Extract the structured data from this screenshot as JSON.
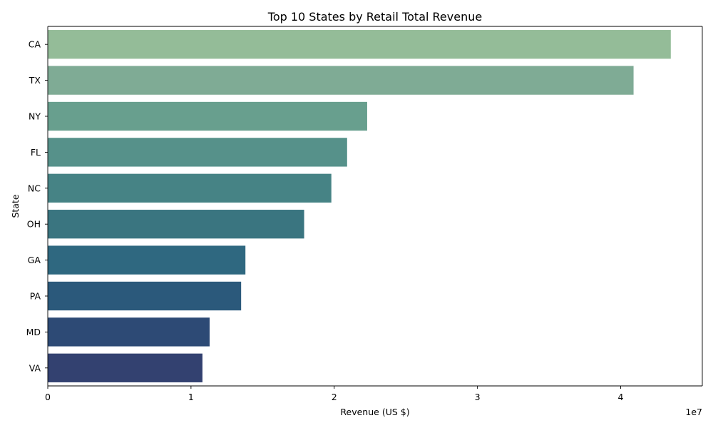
{
  "chart_data": {
    "type": "bar",
    "orientation": "horizontal",
    "title": "Top 10 States by Retail Total Revenue",
    "xlabel": "Revenue (US $)",
    "ylabel": "State",
    "x_offset_label": "1e7",
    "xlim": [
      0,
      45700000
    ],
    "xticks": [
      0,
      10000000,
      20000000,
      30000000,
      40000000
    ],
    "xtick_labels": [
      "0",
      "1",
      "2",
      "3",
      "4"
    ],
    "categories": [
      "CA",
      "TX",
      "NY",
      "FL",
      "NC",
      "OH",
      "GA",
      "PA",
      "MD",
      "VA"
    ],
    "values": [
      43500000,
      40900000,
      22300000,
      20900000,
      19800000,
      17900000,
      13800000,
      13500000,
      11300000,
      10800000
    ],
    "colors": [
      "#94bc98",
      "#7fab95",
      "#689f8e",
      "#56918a",
      "#468385",
      "#3a7580",
      "#2f6880",
      "#2b597b",
      "#2d4a75",
      "#334170"
    ],
    "grid": false,
    "legend": "none"
  }
}
